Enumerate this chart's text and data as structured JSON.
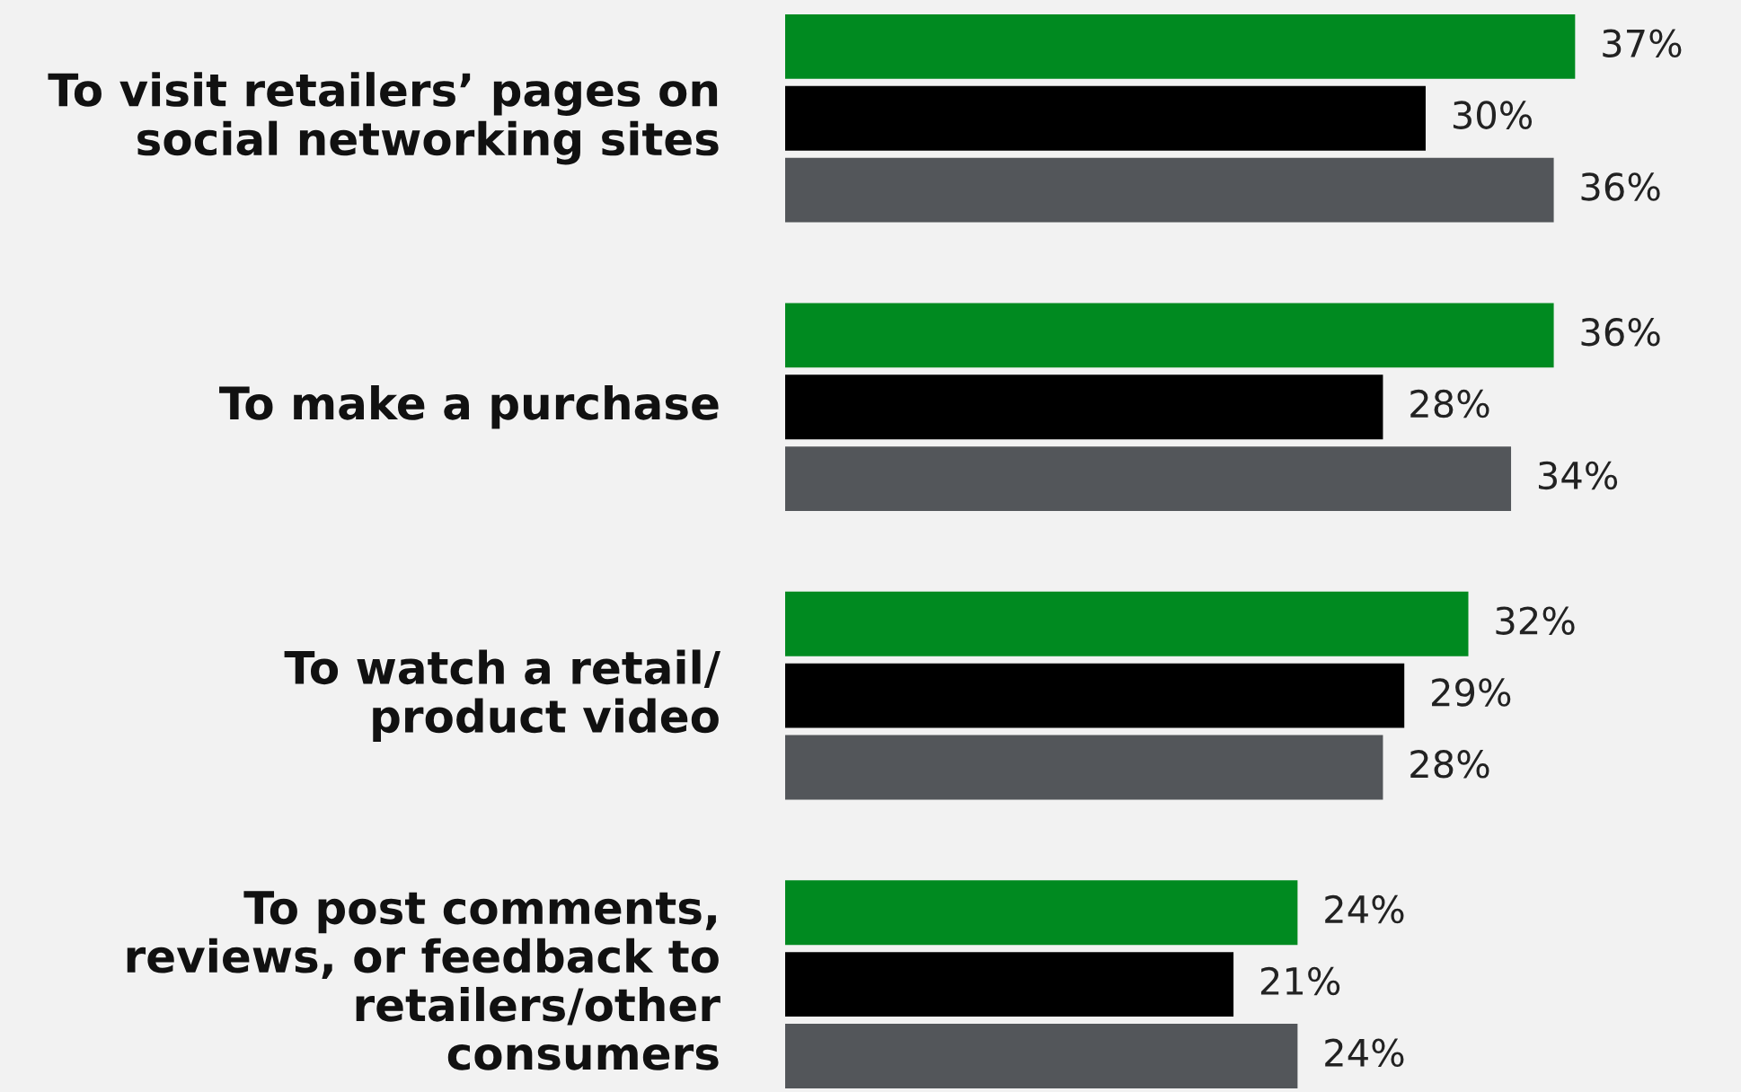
{
  "chart_data": {
    "type": "bar",
    "orientation": "horizontal",
    "categories": [
      "To visit retailers’ pages on\nsocial networking sites",
      "To make a purchase",
      "To watch a retail/\nproduct video",
      "To post comments,\nreviews, or feedback to\nretailers/other\nconsumers"
    ],
    "series": [
      {
        "color": "#008a20",
        "values": [
          37,
          36,
          32,
          24
        ],
        "value_labels": [
          "37%",
          "36%",
          "32%",
          "24%"
        ]
      },
      {
        "color": "#000000",
        "values": [
          30,
          28,
          29,
          21
        ],
        "value_labels": [
          "30%",
          "28%",
          "29%",
          "21%"
        ]
      },
      {
        "color": "#53565a",
        "values": [
          36,
          34,
          28,
          24
        ],
        "value_labels": [
          "36%",
          "34%",
          "28%",
          "24%"
        ]
      }
    ]
  }
}
